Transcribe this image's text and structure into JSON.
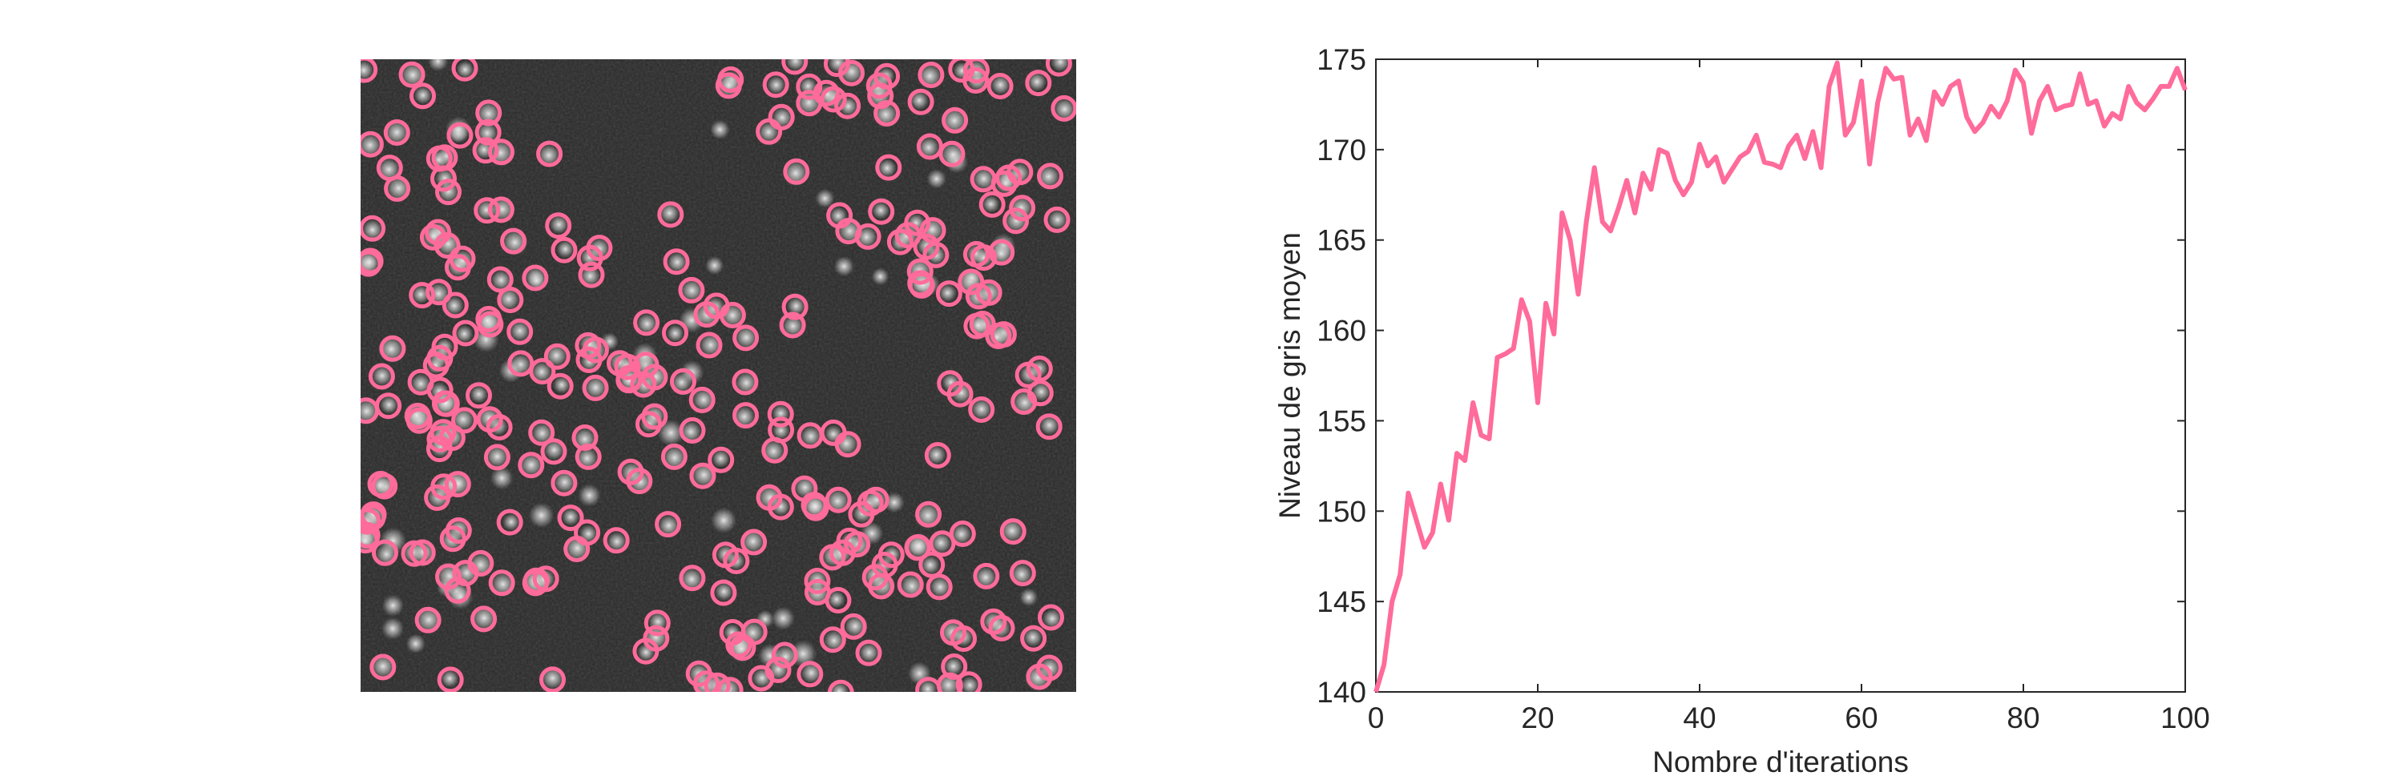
{
  "figure": {
    "marker_color": "#ff6b9a",
    "line_color": "#ff6b9a",
    "axis_color": "#262626",
    "left_panel": {
      "type": "image",
      "description_icon": "microscopy-image-with-detected-spot-circles",
      "background_color": "#2a2a2a",
      "spot_color": "#d8d8d8"
    }
  },
  "chart_data": {
    "type": "line",
    "title": "",
    "xlabel": "Nombre d'iterations",
    "ylabel": "Niveau de gris moyen",
    "xlim": [
      0,
      100
    ],
    "ylim": [
      140,
      175
    ],
    "xticks": [
      0,
      20,
      40,
      60,
      80,
      100
    ],
    "yticks": [
      140,
      145,
      150,
      155,
      160,
      165,
      170,
      175
    ],
    "grid": false,
    "legend": "none",
    "series": [
      {
        "x": [
          0,
          1,
          2,
          3,
          4,
          5,
          6,
          7,
          8,
          9,
          10,
          11,
          12,
          13,
          14,
          15,
          16,
          17,
          18,
          19,
          20,
          21,
          22,
          23,
          24,
          25,
          26,
          27,
          28,
          29,
          30,
          31,
          32,
          33,
          34,
          35,
          36,
          37,
          38,
          39,
          40,
          41,
          42,
          43,
          44,
          45,
          46,
          47,
          48,
          49,
          50,
          51,
          52,
          53,
          54,
          55,
          56,
          57,
          58,
          59,
          60,
          61,
          62,
          63,
          64,
          65,
          66,
          67,
          68,
          69,
          70,
          71,
          72,
          73,
          74,
          75,
          76,
          77,
          78,
          79,
          80,
          81,
          82,
          83,
          84,
          85,
          86,
          87,
          88,
          89,
          90,
          91,
          92,
          93,
          94,
          95,
          96,
          97,
          98,
          99,
          100
        ],
        "values": [
          140,
          141.5,
          145,
          146.5,
          151,
          149.5,
          148,
          148.8,
          151.5,
          149.5,
          153.2,
          152.8,
          156,
          154.2,
          154,
          158.5,
          158.7,
          159,
          161.7,
          160.5,
          156,
          161.5,
          159.8,
          166.5,
          165,
          162,
          166,
          169,
          166,
          165.5,
          166.8,
          168.3,
          166.5,
          168.7,
          167.8,
          170,
          169.8,
          168.3,
          167.5,
          168.2,
          170.3,
          169.1,
          169.6,
          168.2,
          168.9,
          169.6,
          169.9,
          170.8,
          169.3,
          169.2,
          169,
          170.2,
          170.8,
          169.5,
          171,
          169,
          173.5,
          174.8,
          170.8,
          171.5,
          173.8,
          169.2,
          172.6,
          174.5,
          173.9,
          174,
          170.8,
          171.7,
          170.5,
          173.2,
          172.5,
          173.5,
          173.8,
          171.8,
          171,
          171.5,
          172.4,
          171.8,
          172.7,
          174.4,
          173.7,
          170.9,
          172.7,
          173.5,
          172.2,
          172.4,
          172.5,
          174.2,
          172.5,
          172.7,
          171.3,
          172,
          171.7,
          173.5,
          172.6,
          172.2,
          172.8,
          173.5,
          173.5,
          174.5,
          173.3
        ]
      }
    ]
  }
}
